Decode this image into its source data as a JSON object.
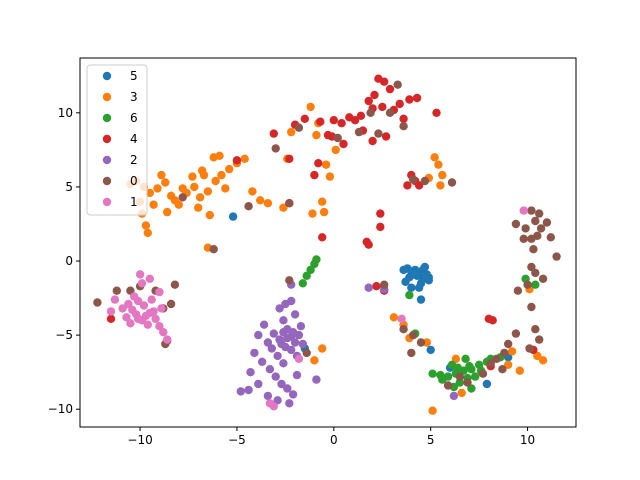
{
  "chart_data": {
    "type": "scatter",
    "title": "",
    "xlabel": "",
    "ylabel": "",
    "xlim": [
      -13.1,
      12.5
    ],
    "ylim": [
      -11.2,
      13.7
    ],
    "xticks": [
      -10,
      -5,
      0,
      5,
      10
    ],
    "yticks": [
      -10,
      -5,
      0,
      5,
      10
    ],
    "grid": false,
    "legend_position": "top-left",
    "series": [
      {
        "name": "5",
        "color": "#1f77b4",
        "points": [
          [
            3.6,
            -0.6
          ],
          [
            3.8,
            -0.5
          ],
          [
            4.0,
            -0.7
          ],
          [
            4.2,
            -0.6
          ],
          [
            4.4,
            -0.8
          ],
          [
            4.6,
            -0.6
          ],
          [
            4.8,
            -0.9
          ],
          [
            4.3,
            -1.0
          ],
          [
            4.6,
            -1.2
          ],
          [
            4.9,
            -1.3
          ],
          [
            4.5,
            -1.5
          ],
          [
            4.1,
            -0.9
          ],
          [
            3.9,
            -1.1
          ],
          [
            4.7,
            -0.4
          ],
          [
            4.4,
            -1.8
          ],
          [
            4.5,
            -2.6
          ],
          [
            3.7,
            -1.4
          ],
          [
            -5.2,
            3.0
          ],
          [
            4.0,
            -1.8
          ],
          [
            5.0,
            -6.0
          ],
          [
            6.0,
            -7.2
          ],
          [
            7.9,
            -8.3
          ],
          [
            9.0,
            -6.5
          ],
          [
            -1.5,
            -5.9
          ],
          [
            4.9,
            -1.1
          ]
        ]
      },
      {
        "name": "3",
        "color": "#ff7f0e",
        "points": [
          [
            -10.5,
            5.2
          ],
          [
            -10.2,
            5.4
          ],
          [
            -9.8,
            5.0
          ],
          [
            -9.5,
            4.6
          ],
          [
            -9.1,
            4.9
          ],
          [
            -8.7,
            5.3
          ],
          [
            -8.4,
            4.4
          ],
          [
            -8.0,
            3.8
          ],
          [
            -7.6,
            4.6
          ],
          [
            -7.2,
            5.0
          ],
          [
            -6.9,
            4.3
          ],
          [
            -6.5,
            4.7
          ],
          [
            -6.1,
            5.4
          ],
          [
            -5.8,
            5.8
          ],
          [
            -5.4,
            6.2
          ],
          [
            -5.0,
            6.6
          ],
          [
            -4.6,
            6.9
          ],
          [
            -6.8,
            6.1
          ],
          [
            -7.3,
            5.7
          ],
          [
            -8.9,
            5.8
          ],
          [
            -9.3,
            3.8
          ],
          [
            -8.6,
            3.3
          ],
          [
            -10.0,
            4.0
          ],
          [
            -9.7,
            2.4
          ],
          [
            -9.6,
            1.9
          ],
          [
            -6.4,
            3.1
          ],
          [
            -6.2,
            7.0
          ],
          [
            -5.9,
            7.1
          ],
          [
            -4.2,
            4.7
          ],
          [
            -3.8,
            4.1
          ],
          [
            -6.5,
            0.9
          ],
          [
            -3.4,
            3.9
          ],
          [
            -2.6,
            3.6
          ],
          [
            -2.4,
            6.9
          ],
          [
            -1.1,
            3.2
          ],
          [
            -0.5,
            3.3
          ],
          [
            -0.6,
            4.0
          ],
          [
            -0.2,
            5.7
          ],
          [
            -0.4,
            6.5
          ],
          [
            0.1,
            7.5
          ],
          [
            -0.8,
            9.3
          ],
          [
            -1.2,
            10.4
          ],
          [
            -2.2,
            8.7
          ],
          [
            -0.9,
            8.5
          ],
          [
            5.2,
            7.0
          ],
          [
            5.4,
            6.5
          ],
          [
            5.6,
            5.8
          ],
          [
            4.9,
            5.6
          ],
          [
            5.5,
            5.1
          ],
          [
            3.1,
            -3.8
          ],
          [
            3.6,
            -4.3
          ],
          [
            3.9,
            -5.2
          ],
          [
            4.8,
            -5.5
          ],
          [
            5.1,
            -10.1
          ],
          [
            6.6,
            -8.9
          ],
          [
            6.3,
            -6.6
          ],
          [
            9.0,
            -7.0
          ],
          [
            10.5,
            -6.4
          ],
          [
            10.8,
            -6.7
          ],
          [
            9.6,
            -7.4
          ],
          [
            9.2,
            -6.1
          ],
          [
            10.1,
            -1.9
          ],
          [
            -1.0,
            -6.7
          ],
          [
            -0.6,
            -5.9
          ],
          [
            -8.2,
            4.1
          ],
          [
            -7.8,
            4.9
          ],
          [
            -6.7,
            5.8
          ],
          [
            -9.9,
            3.2
          ],
          [
            -7.0,
            3.6
          ],
          [
            -5.6,
            4.9
          ]
        ]
      },
      {
        "name": "6",
        "color": "#2ca02c",
        "points": [
          [
            -1.6,
            -1.5
          ],
          [
            -1.4,
            -1.0
          ],
          [
            -1.2,
            -0.6
          ],
          [
            -1.0,
            -0.2
          ],
          [
            -0.9,
            0.1
          ],
          [
            3.9,
            -2.3
          ],
          [
            4.2,
            -4.9
          ],
          [
            5.1,
            -7.6
          ],
          [
            5.5,
            -7.7
          ],
          [
            5.9,
            -7.8
          ],
          [
            6.3,
            -7.6
          ],
          [
            6.7,
            -7.4
          ],
          [
            7.1,
            -7.3
          ],
          [
            7.5,
            -7.0
          ],
          [
            7.9,
            -6.8
          ],
          [
            6.9,
            -7.9
          ],
          [
            6.5,
            -8.2
          ],
          [
            7.1,
            -8.6
          ],
          [
            6.8,
            -6.6
          ],
          [
            6.1,
            -7.0
          ],
          [
            7.3,
            -7.8
          ],
          [
            8.1,
            -6.6
          ],
          [
            9.9,
            -1.2
          ],
          [
            10.4,
            -1.6
          ],
          [
            8.6,
            -6.5
          ],
          [
            5.6,
            -8.0
          ],
          [
            6.2,
            -8.5
          ],
          [
            7.0,
            -7.1
          ],
          [
            6.4,
            -7.2
          ],
          [
            7.6,
            -7.4
          ]
        ]
      },
      {
        "name": "4",
        "color": "#d62728",
        "points": [
          [
            2.3,
            12.3
          ],
          [
            2.6,
            12.1
          ],
          [
            2.9,
            11.6
          ],
          [
            2.1,
            11.2
          ],
          [
            1.8,
            10.8
          ],
          [
            3.4,
            10.6
          ],
          [
            3.9,
            10.9
          ],
          [
            4.3,
            11.0
          ],
          [
            2.5,
            10.4
          ],
          [
            1.4,
            9.8
          ],
          [
            1.1,
            9.5
          ],
          [
            0.8,
            9.7
          ],
          [
            0.4,
            9.3
          ],
          [
            0.0,
            9.5
          ],
          [
            -0.7,
            9.4
          ],
          [
            -1.5,
            9.6
          ],
          [
            -2.0,
            9.2
          ],
          [
            -3.1,
            8.6
          ],
          [
            2.0,
            8.1
          ],
          [
            2.7,
            8.4
          ],
          [
            1.5,
            8.8
          ],
          [
            -0.1,
            8.4
          ],
          [
            0.5,
            7.9
          ],
          [
            -0.8,
            6.6
          ],
          [
            -1.0,
            5.8
          ],
          [
            -2.3,
            6.9
          ],
          [
            -2.3,
            3.9
          ],
          [
            -5.0,
            6.8
          ],
          [
            4.0,
            5.8
          ],
          [
            3.8,
            5.1
          ],
          [
            4.2,
            5.4
          ],
          [
            4.4,
            5.1
          ],
          [
            2.4,
            3.2
          ],
          [
            2.4,
            2.3
          ],
          [
            1.7,
            1.3
          ],
          [
            1.8,
            1.1
          ],
          [
            -0.6,
            1.6
          ],
          [
            2.6,
            -2.0
          ],
          [
            2.2,
            -1.7
          ],
          [
            5.3,
            10.0
          ],
          [
            3.6,
            9.6
          ],
          [
            3.1,
            10.2
          ],
          [
            2.0,
            10.3
          ],
          [
            -11.5,
            -3.9
          ],
          [
            8.0,
            -3.9
          ],
          [
            8.2,
            -4.0
          ],
          [
            8.1,
            -7.1
          ],
          [
            10.3,
            -6.0
          ],
          [
            -0.3,
            8.5
          ]
        ]
      },
      {
        "name": "2",
        "color": "#9467bd",
        "points": [
          [
            -2.8,
            -3.2
          ],
          [
            -2.6,
            -4.0
          ],
          [
            -2.4,
            -4.6
          ],
          [
            -2.2,
            -5.1
          ],
          [
            -2.0,
            -5.5
          ],
          [
            -1.8,
            -5.0
          ],
          [
            -2.5,
            -5.8
          ],
          [
            -2.9,
            -6.4
          ],
          [
            -2.6,
            -6.9
          ],
          [
            -2.2,
            -6.0
          ],
          [
            -1.9,
            -6.4
          ],
          [
            -1.6,
            -5.6
          ],
          [
            -2.8,
            -5.3
          ],
          [
            -3.1,
            -4.9
          ],
          [
            -3.4,
            -5.5
          ],
          [
            -3.6,
            -4.3
          ],
          [
            -3.9,
            -5.0
          ],
          [
            -4.1,
            -6.2
          ],
          [
            -3.7,
            -6.8
          ],
          [
            -3.3,
            -7.3
          ],
          [
            -3.0,
            -7.8
          ],
          [
            -2.7,
            -8.3
          ],
          [
            -2.4,
            -8.6
          ],
          [
            -2.1,
            -9.0
          ],
          [
            -2.3,
            -9.6
          ],
          [
            -2.9,
            -9.4
          ],
          [
            -3.4,
            -9.1
          ],
          [
            -3.9,
            -8.3
          ],
          [
            -4.4,
            -8.7
          ],
          [
            -4.8,
            -8.8
          ],
          [
            -4.3,
            -7.5
          ],
          [
            -2.5,
            -2.9
          ],
          [
            -2.2,
            -2.7
          ],
          [
            -2.0,
            -3.6
          ],
          [
            -1.7,
            -4.4
          ],
          [
            -1.9,
            -7.7
          ],
          [
            -0.9,
            -8.0
          ],
          [
            -2.2,
            -1.6
          ],
          [
            -2.1,
            -4.8
          ],
          [
            -2.4,
            -5.2
          ],
          [
            1.8,
            -1.8
          ],
          [
            6.2,
            -9.1
          ],
          [
            2.6,
            -1.9
          ],
          [
            -2.7,
            -5.6
          ],
          [
            -3.2,
            -5.9
          ],
          [
            -2.6,
            -4.8
          ]
        ]
      },
      {
        "name": "0",
        "color": "#8c564b",
        "points": [
          [
            -12.2,
            -2.8
          ],
          [
            -11.2,
            -2.0
          ],
          [
            -10.5,
            -2.0
          ],
          [
            -10.0,
            -1.7
          ],
          [
            -9.2,
            -2.0
          ],
          [
            -8.8,
            -3.2
          ],
          [
            -8.2,
            -1.6
          ],
          [
            -8.6,
            -5.4
          ],
          [
            -8.4,
            -2.9
          ],
          [
            -8.7,
            -5.6
          ],
          [
            -7.8,
            4.3
          ],
          [
            -6.2,
            0.8
          ],
          [
            -4.4,
            3.7
          ],
          [
            -3.0,
            7.6
          ],
          [
            -2.3,
            3.9
          ],
          [
            -1.8,
            9.0
          ],
          [
            0.2,
            8.3
          ],
          [
            1.3,
            8.7
          ],
          [
            2.3,
            8.6
          ],
          [
            1.9,
            10.0
          ],
          [
            2.9,
            10.0
          ],
          [
            3.3,
            11.9
          ],
          [
            3.6,
            9.1
          ],
          [
            4.1,
            5.5
          ],
          [
            4.7,
            5.4
          ],
          [
            6.1,
            5.3
          ],
          [
            10.2,
            3.4
          ],
          [
            10.6,
            3.2
          ],
          [
            10.4,
            2.7
          ],
          [
            10.7,
            2.2
          ],
          [
            10.5,
            1.7
          ],
          [
            10.2,
            1.5
          ],
          [
            11.0,
            2.6
          ],
          [
            11.2,
            1.6
          ],
          [
            10.3,
            0.8
          ],
          [
            9.9,
            2.2
          ],
          [
            9.8,
            1.5
          ],
          [
            9.4,
            2.5
          ],
          [
            10.2,
            -0.4
          ],
          [
            10.4,
            -0.8
          ],
          [
            10.0,
            -1.6
          ],
          [
            9.5,
            -2.0
          ],
          [
            10.2,
            -3.1
          ],
          [
            9.0,
            -5.6
          ],
          [
            9.4,
            -4.9
          ],
          [
            8.8,
            -6.2
          ],
          [
            8.4,
            -6.6
          ],
          [
            8.1,
            -6.9
          ],
          [
            10.6,
            -5.3
          ],
          [
            10.4,
            -4.6
          ],
          [
            7.7,
            -7.6
          ],
          [
            6.9,
            -8.2
          ],
          [
            6.5,
            -7.8
          ],
          [
            5.9,
            -8.4
          ],
          [
            4.5,
            -5.5
          ],
          [
            4.0,
            -6.2
          ],
          [
            3.6,
            -4.6
          ],
          [
            4.1,
            -5.0
          ],
          [
            8.7,
            -7.3
          ],
          [
            10.1,
            -5.9
          ],
          [
            10.8,
            -1.2
          ],
          [
            2.6,
            -1.6
          ],
          [
            11.5,
            0.3
          ],
          [
            -2.3,
            -1.3
          ],
          [
            -1.4,
            -6.2
          ]
        ]
      },
      {
        "name": "1",
        "color": "#e377c2",
        "points": [
          [
            -10.9,
            -3.2
          ],
          [
            -10.6,
            -2.9
          ],
          [
            -10.4,
            -3.3
          ],
          [
            -10.1,
            -2.7
          ],
          [
            -9.8,
            -3.0
          ],
          [
            -9.5,
            -3.5
          ],
          [
            -9.2,
            -3.9
          ],
          [
            -9.0,
            -4.4
          ],
          [
            -8.8,
            -4.8
          ],
          [
            -8.6,
            -5.3
          ],
          [
            -10.2,
            -3.6
          ],
          [
            -9.9,
            -4.0
          ],
          [
            -9.6,
            -4.3
          ],
          [
            -10.7,
            -3.8
          ],
          [
            -10.3,
            -2.4
          ],
          [
            -9.9,
            -1.5
          ],
          [
            -9.5,
            -1.2
          ],
          [
            -10.0,
            -0.9
          ],
          [
            -11.3,
            -2.6
          ],
          [
            -11.5,
            -3.4
          ],
          [
            -9.0,
            -2.1
          ],
          [
            -8.9,
            -3.2
          ],
          [
            -9.4,
            -2.6
          ],
          [
            -10.5,
            -4.2
          ],
          [
            -3.1,
            -9.8
          ],
          [
            -3.3,
            -9.6
          ],
          [
            -1.8,
            -6.6
          ],
          [
            3.5,
            -3.9
          ],
          [
            9.8,
            3.4
          ],
          [
            -9.7,
            -3.7
          ],
          [
            -10.1,
            -3.9
          ],
          [
            -9.3,
            -3.4
          ]
        ]
      }
    ]
  }
}
